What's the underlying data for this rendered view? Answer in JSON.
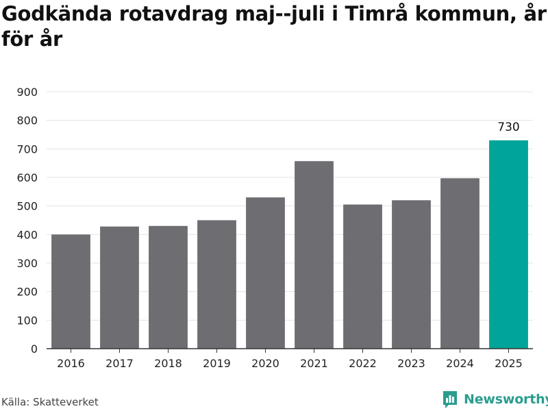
{
  "title": "Godkända rotavdrag maj--juli i Timrå kommun, år för år",
  "source": "Källa: Skatteverket",
  "brand": {
    "name": "Newsworthy",
    "icon": "bar-chart-speech-bubble-icon",
    "color": "#2a9d8f"
  },
  "chart_data": {
    "type": "bar",
    "categories": [
      "2016",
      "2017",
      "2018",
      "2019",
      "2020",
      "2021",
      "2022",
      "2023",
      "2024",
      "2025"
    ],
    "values": [
      400,
      428,
      430,
      450,
      530,
      657,
      505,
      520,
      597,
      730
    ],
    "ylim": [
      0,
      900
    ],
    "yticks": [
      0,
      100,
      200,
      300,
      400,
      500,
      600,
      700,
      800,
      900
    ],
    "grid": true,
    "legend": "none",
    "colors": {
      "default": "#6e6d72",
      "highlight": "#00a499"
    },
    "highlight_index": 9,
    "data_labels": [
      {
        "index": 9,
        "text": "730"
      }
    ]
  }
}
